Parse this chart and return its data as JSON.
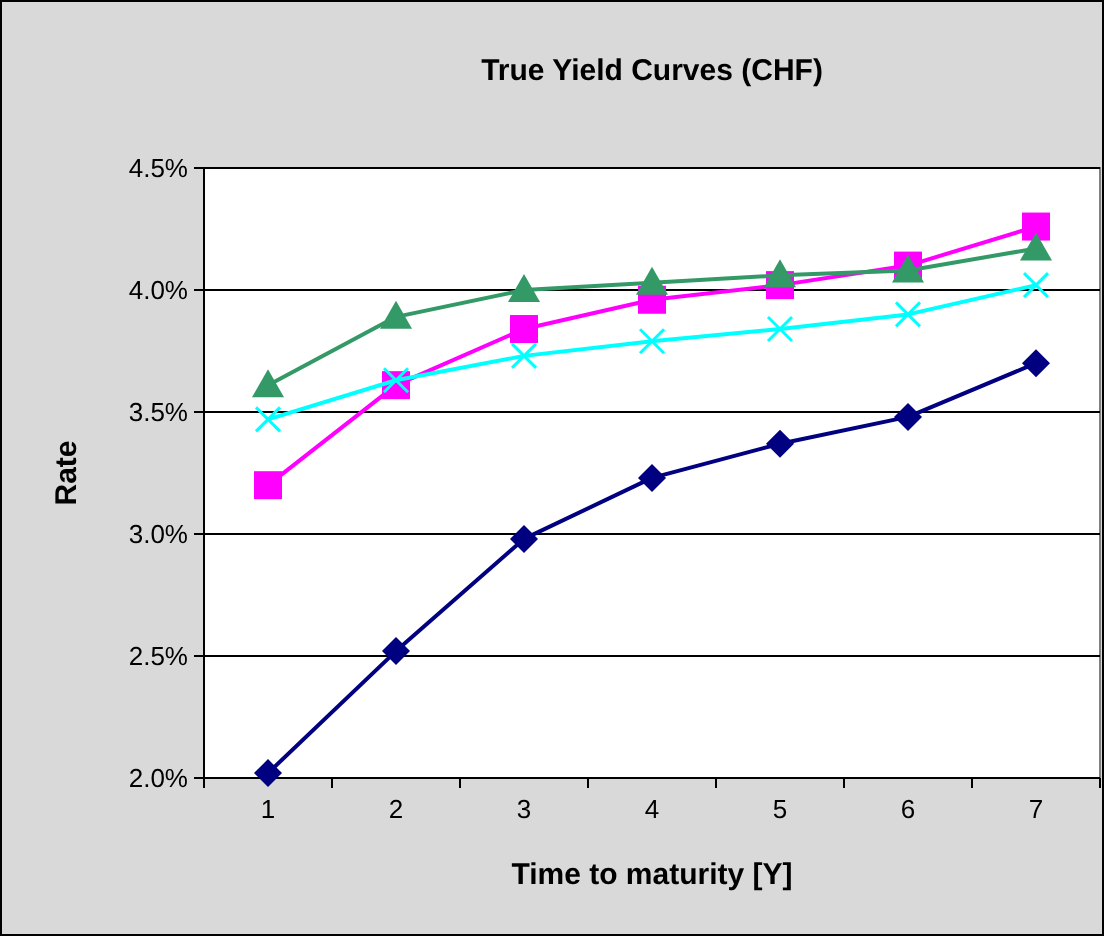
{
  "chart_data": {
    "type": "line",
    "title": "True Yield Curves (CHF)",
    "xlabel": "Time to maturity [Y]",
    "ylabel": "Rate",
    "categories": [
      "1",
      "2",
      "3",
      "4",
      "5",
      "6",
      "7"
    ],
    "ylim": [
      2.0,
      4.5
    ],
    "yticks": [
      {
        "value": 2.0,
        "label": "2.0%"
      },
      {
        "value": 2.5,
        "label": "2.5%"
      },
      {
        "value": 3.0,
        "label": "3.0%"
      },
      {
        "value": 3.5,
        "label": "3.5%"
      },
      {
        "value": 4.0,
        "label": "4.0%"
      },
      {
        "value": 4.5,
        "label": "4.5%"
      }
    ],
    "grid": "y",
    "line_style": "solid",
    "series": [
      {
        "color": "#000080",
        "marker": "diamond",
        "values": [
          2.02,
          2.52,
          2.98,
          3.23,
          3.37,
          3.48,
          3.7
        ]
      },
      {
        "color": "#ff00ff",
        "marker": "square",
        "values": [
          3.2,
          3.61,
          3.84,
          3.96,
          4.02,
          4.1,
          4.26
        ]
      },
      {
        "color": "#339966",
        "marker": "triangle",
        "values": [
          3.61,
          3.89,
          4.0,
          4.03,
          4.06,
          4.08,
          4.17
        ]
      },
      {
        "color": "#00ffff",
        "marker": "cross",
        "values": [
          3.47,
          3.63,
          3.73,
          3.79,
          3.84,
          3.9,
          4.02
        ]
      }
    ]
  }
}
